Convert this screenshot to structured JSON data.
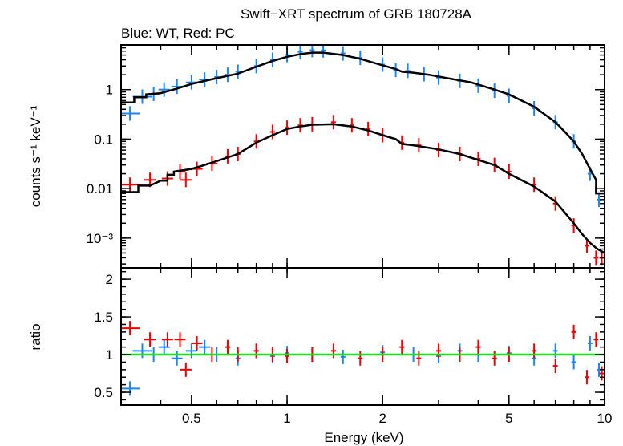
{
  "chart_data": {
    "type": "scatter",
    "title": "Swift−XRT spectrum of GRB 180728A",
    "subtitle": "Blue: WT, Red: PC",
    "colors": {
      "wt": "#1a87f0",
      "pc": "#f00000",
      "model": "#000000",
      "unity": "#22dd22"
    },
    "xscale": "log",
    "xlabel": "Energy (keV)",
    "xlim": [
      0.3,
      10
    ],
    "xticks": [
      {
        "value": 0.5,
        "label": "0.5"
      },
      {
        "value": 1,
        "label": "1"
      },
      {
        "value": 2,
        "label": "2"
      },
      {
        "value": 5,
        "label": "5"
      },
      {
        "value": 10,
        "label": "10"
      }
    ],
    "panels": [
      {
        "name": "spectrum",
        "ylabel": "counts s⁻¹ keV⁻¹",
        "yscale": "log",
        "ylim": [
          0.00025,
          8
        ],
        "yticks": [
          {
            "value": 1,
            "label": "1"
          },
          {
            "value": 0.1,
            "label": "0.1"
          },
          {
            "value": 0.01,
            "label": "0.01"
          },
          {
            "value": 0.001,
            "label": "10⁻³"
          }
        ],
        "series": [
          {
            "instrument": "WT",
            "color": "#1a87f0",
            "points": [
              [
                0.32,
                0.33
              ],
              [
                0.35,
                0.72
              ],
              [
                0.38,
                0.82
              ],
              [
                0.41,
                1.0
              ],
              [
                0.45,
                1.15
              ],
              [
                0.5,
                1.4
              ],
              [
                0.55,
                1.6
              ],
              [
                0.6,
                1.8
              ],
              [
                0.65,
                2.0
              ],
              [
                0.7,
                2.3
              ],
              [
                0.8,
                3.0
              ],
              [
                0.9,
                4.0
              ],
              [
                1.0,
                5.0
              ],
              [
                1.1,
                5.8
              ],
              [
                1.2,
                6.3
              ],
              [
                1.3,
                6.2
              ],
              [
                1.5,
                5.4
              ],
              [
                1.7,
                4.4
              ],
              [
                2.0,
                3.2
              ],
              [
                2.2,
                2.5
              ],
              [
                2.4,
                2.4
              ],
              [
                2.7,
                2.05
              ],
              [
                3.0,
                1.75
              ],
              [
                3.5,
                1.5
              ],
              [
                4.0,
                1.2
              ],
              [
                4.5,
                0.95
              ],
              [
                5.0,
                0.75
              ],
              [
                6.0,
                0.42
              ],
              [
                7.0,
                0.22
              ],
              [
                8.0,
                0.09
              ],
              [
                9.0,
                0.02
              ],
              [
                9.6,
                0.006
              ]
            ]
          },
          {
            "instrument": "PC",
            "color": "#f00000",
            "points": [
              [
                0.32,
                0.012
              ],
              [
                0.37,
                0.015
              ],
              [
                0.42,
                0.016
              ],
              [
                0.46,
                0.022
              ],
              [
                0.48,
                0.015
              ],
              [
                0.52,
                0.025
              ],
              [
                0.58,
                0.032
              ],
              [
                0.65,
                0.045
              ],
              [
                0.7,
                0.05
              ],
              [
                0.8,
                0.09
              ],
              [
                0.9,
                0.14
              ],
              [
                1.0,
                0.17
              ],
              [
                1.1,
                0.19
              ],
              [
                1.2,
                0.2
              ],
              [
                1.4,
                0.22
              ],
              [
                1.6,
                0.19
              ],
              [
                1.8,
                0.16
              ],
              [
                2.0,
                0.12
              ],
              [
                2.3,
                0.085
              ],
              [
                2.6,
                0.075
              ],
              [
                3.0,
                0.06
              ],
              [
                3.5,
                0.05
              ],
              [
                4.0,
                0.04
              ],
              [
                4.5,
                0.03
              ],
              [
                5.0,
                0.022
              ],
              [
                6.0,
                0.012
              ],
              [
                7.0,
                0.005
              ],
              [
                8.0,
                0.0018
              ],
              [
                8.8,
                0.0007
              ],
              [
                9.4,
                0.0004
              ],
              [
                9.8,
                0.0004
              ]
            ]
          }
        ],
        "models": [
          {
            "instrument": "WT",
            "points": [
              [
                0.3,
                0.55
              ],
              [
                0.33,
                0.55
              ],
              [
                0.33,
                0.7
              ],
              [
                0.36,
                0.7
              ],
              [
                0.36,
                0.8
              ],
              [
                0.4,
                0.85
              ],
              [
                0.45,
                1.05
              ],
              [
                0.5,
                1.3
              ],
              [
                0.55,
                1.5
              ],
              [
                0.6,
                1.7
              ],
              [
                0.7,
                2.1
              ],
              [
                0.8,
                2.9
              ],
              [
                0.9,
                3.8
              ],
              [
                1.0,
                4.6
              ],
              [
                1.1,
                5.2
              ],
              [
                1.2,
                5.6
              ],
              [
                1.3,
                5.6
              ],
              [
                1.5,
                5.0
              ],
              [
                1.7,
                4.2
              ],
              [
                2.0,
                3.1
              ],
              [
                2.2,
                2.6
              ],
              [
                2.3,
                2.3
              ],
              [
                2.5,
                2.2
              ],
              [
                2.8,
                2.0
              ],
              [
                3.2,
                1.7
              ],
              [
                3.8,
                1.4
              ],
              [
                4.5,
                1.0
              ],
              [
                5.0,
                0.8
              ],
              [
                6.0,
                0.45
              ],
              [
                7.0,
                0.22
              ],
              [
                7.5,
                0.14
              ],
              [
                8.0,
                0.09
              ],
              [
                8.5,
                0.05
              ],
              [
                9.0,
                0.025
              ],
              [
                9.4,
                0.015
              ],
              [
                9.4,
                0.008
              ],
              [
                10.0,
                0.008
              ]
            ]
          },
          {
            "instrument": "PC",
            "points": [
              [
                0.3,
                0.0085
              ],
              [
                0.34,
                0.0085
              ],
              [
                0.34,
                0.0115
              ],
              [
                0.37,
                0.0115
              ],
              [
                0.37,
                0.0115
              ],
              [
                0.4,
                0.0145
              ],
              [
                0.42,
                0.0145
              ],
              [
                0.42,
                0.019
              ],
              [
                0.44,
                0.019
              ],
              [
                0.44,
                0.022
              ],
              [
                0.5,
                0.025
              ],
              [
                0.55,
                0.03
              ],
              [
                0.6,
                0.036
              ],
              [
                0.7,
                0.05
              ],
              [
                0.8,
                0.085
              ],
              [
                0.9,
                0.12
              ],
              [
                1.0,
                0.16
              ],
              [
                1.1,
                0.18
              ],
              [
                1.2,
                0.195
              ],
              [
                1.4,
                0.2
              ],
              [
                1.6,
                0.18
              ],
              [
                1.8,
                0.15
              ],
              [
                2.0,
                0.12
              ],
              [
                2.2,
                0.1
              ],
              [
                2.3,
                0.08
              ],
              [
                2.5,
                0.075
              ],
              [
                3.0,
                0.062
              ],
              [
                3.5,
                0.05
              ],
              [
                4.0,
                0.038
              ],
              [
                4.5,
                0.03
              ],
              [
                5.0,
                0.02
              ],
              [
                6.0,
                0.011
              ],
              [
                7.0,
                0.0055
              ],
              [
                8.0,
                0.002
              ],
              [
                8.5,
                0.0012
              ],
              [
                9.0,
                0.0008
              ],
              [
                9.5,
                0.0006
              ],
              [
                10.0,
                0.0005
              ]
            ]
          }
        ]
      },
      {
        "name": "ratio",
        "ylabel": "ratio",
        "yscale": "linear",
        "ylim": [
          0.33,
          2.15
        ],
        "yticks": [
          {
            "value": 0.5,
            "label": "0.5"
          },
          {
            "value": 1,
            "label": "1"
          },
          {
            "value": 1.5,
            "label": "1.5"
          },
          {
            "value": 2,
            "label": "2"
          }
        ],
        "reference_line": 1,
        "series": [
          {
            "instrument": "WT",
            "color": "#1a87f0",
            "points": [
              [
                0.32,
                0.55
              ],
              [
                0.35,
                1.05
              ],
              [
                0.38,
                1.0
              ],
              [
                0.41,
                1.1
              ],
              [
                0.45,
                0.95
              ],
              [
                0.5,
                1.05
              ],
              [
                0.55,
                1.1
              ],
              [
                0.6,
                1.0
              ],
              [
                0.7,
                0.95
              ],
              [
                0.8,
                1.05
              ],
              [
                0.9,
                0.98
              ],
              [
                1.0,
                1.02
              ],
              [
                1.2,
                1.0
              ],
              [
                1.5,
                0.97
              ],
              [
                2.0,
                1.03
              ],
              [
                2.5,
                1.0
              ],
              [
                3.0,
                0.98
              ],
              [
                3.5,
                1.05
              ],
              [
                4.0,
                1.0
              ],
              [
                5.0,
                1.02
              ],
              [
                6.0,
                0.95
              ],
              [
                7.0,
                1.05
              ],
              [
                8.0,
                0.9
              ],
              [
                9.0,
                1.15
              ],
              [
                9.6,
                0.8
              ]
            ]
          },
          {
            "instrument": "PC",
            "color": "#f00000",
            "points": [
              [
                0.32,
                1.35
              ],
              [
                0.37,
                1.2
              ],
              [
                0.42,
                1.2
              ],
              [
                0.46,
                1.2
              ],
              [
                0.48,
                0.8
              ],
              [
                0.52,
                1.15
              ],
              [
                0.58,
                1.0
              ],
              [
                0.65,
                1.1
              ],
              [
                0.7,
                1.0
              ],
              [
                0.8,
                1.05
              ],
              [
                0.9,
                1.0
              ],
              [
                1.0,
                0.98
              ],
              [
                1.2,
                1.0
              ],
              [
                1.4,
                1.05
              ],
              [
                1.7,
                0.95
              ],
              [
                2.0,
                1.0
              ],
              [
                2.3,
                1.1
              ],
              [
                2.6,
                0.95
              ],
              [
                3.0,
                1.05
              ],
              [
                3.5,
                1.0
              ],
              [
                4.0,
                1.1
              ],
              [
                4.5,
                0.95
              ],
              [
                5.0,
                1.0
              ],
              [
                6.0,
                1.05
              ],
              [
                7.0,
                0.85
              ],
              [
                8.0,
                1.3
              ],
              [
                8.8,
                0.7
              ],
              [
                9.4,
                1.2
              ],
              [
                9.8,
                0.75
              ]
            ]
          }
        ]
      }
    ]
  }
}
